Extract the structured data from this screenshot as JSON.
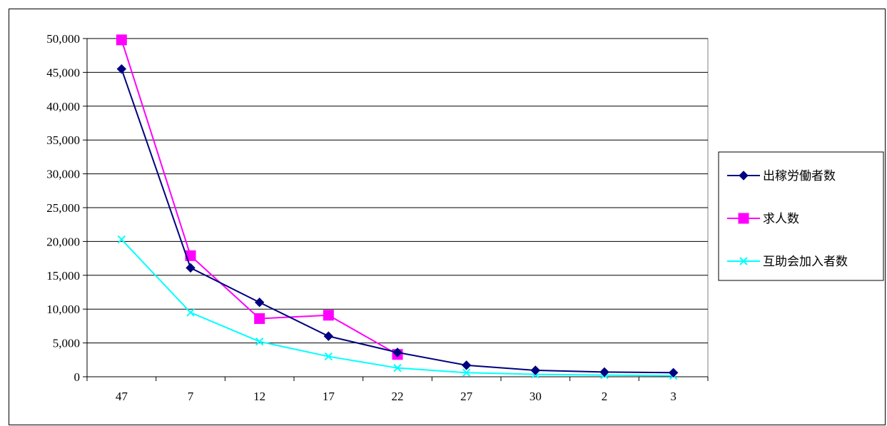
{
  "chart_data": {
    "type": "line",
    "title": "",
    "xlabel": "",
    "ylabel": "",
    "categories": [
      "47",
      "7",
      "12",
      "17",
      "22",
      "27",
      "30",
      "2",
      "3"
    ],
    "ylim": [
      0,
      50000
    ],
    "ytick_step": 5000,
    "ytick_labels": [
      "0",
      "5,000",
      "10,000",
      "15,000",
      "20,000",
      "25,000",
      "30,000",
      "35,000",
      "40,000",
      "45,000",
      "50,000"
    ],
    "grid": "horizontal",
    "legend_position": "right",
    "series": [
      {
        "name": "出稼労働者数",
        "color": "#000080",
        "marker": "diamond",
        "values": [
          45500,
          16100,
          11000,
          6000,
          3600,
          1700,
          950,
          700,
          600
        ]
      },
      {
        "name": "求人数",
        "color": "#ff00ff",
        "marker": "square",
        "values": [
          49800,
          17900,
          8600,
          9100,
          3300,
          null,
          null,
          null,
          null
        ]
      },
      {
        "name": "互助会加入者数",
        "color": "#00ffff",
        "marker": "x",
        "values": [
          20300,
          9500,
          5200,
          3000,
          1300,
          600,
          350,
          250,
          150
        ]
      }
    ]
  }
}
